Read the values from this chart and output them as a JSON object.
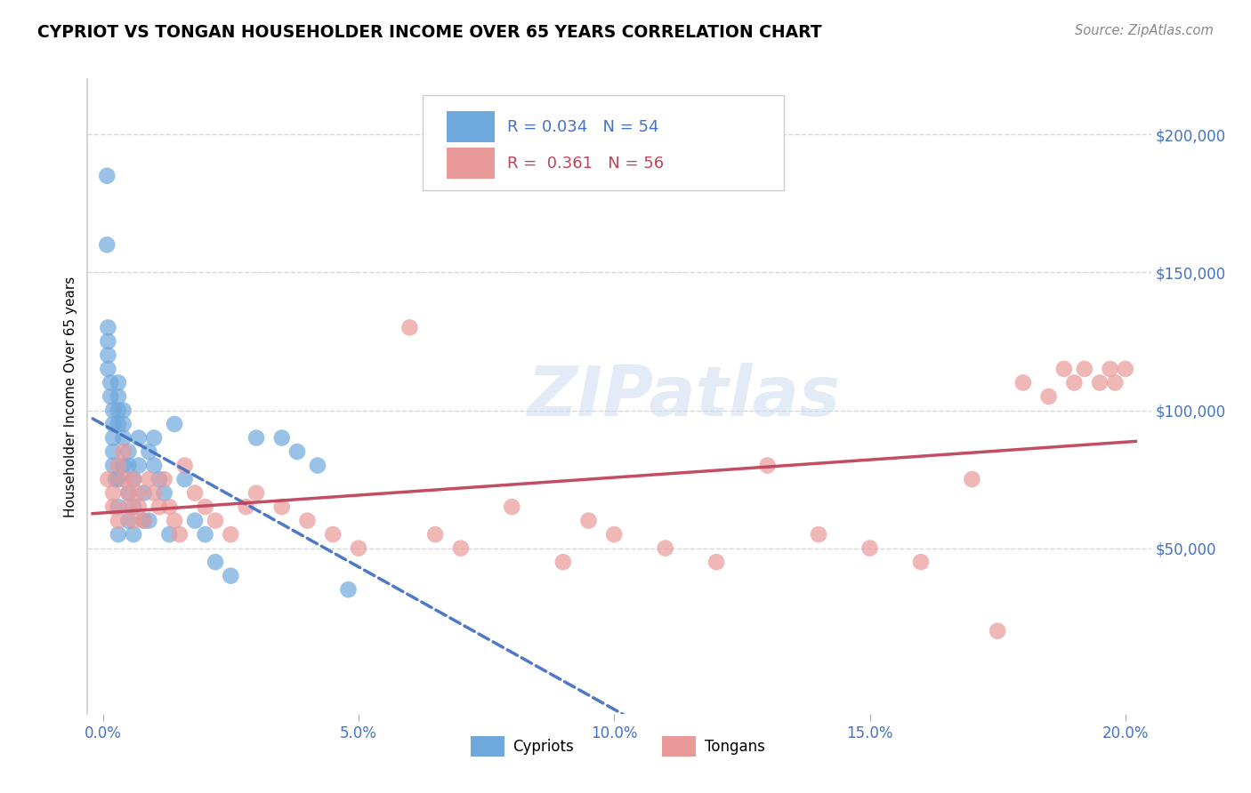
{
  "title": "CYPRIOT VS TONGAN HOUSEHOLDER INCOME OVER 65 YEARS CORRELATION CHART",
  "source": "Source: ZipAtlas.com",
  "ylabel": "Householder Income Over 65 years",
  "y_ticks": [
    0,
    50000,
    100000,
    150000,
    200000
  ],
  "y_tick_labels": [
    "",
    "$50,000",
    "$100,000",
    "$150,000",
    "$200,000"
  ],
  "x_ticks": [
    0.0,
    0.05,
    0.1,
    0.15,
    0.2
  ],
  "x_tick_labels": [
    "0.0%",
    "5.0%",
    "10.0%",
    "15.0%",
    "20.0%"
  ],
  "x_range": [
    0.0,
    0.2
  ],
  "y_range": [
    -10000,
    220000
  ],
  "legend1_R": "0.034",
  "legend1_N": "54",
  "legend2_R": "0.361",
  "legend2_N": "56",
  "cypriot_color": "#6fa8dc",
  "tongan_color": "#ea9999",
  "cypriot_trend_color": "#4472c4",
  "tongan_trend_color": "#c0435a",
  "grid_color": "#cccccc",
  "watermark": "ZIPatlas",
  "cypriot_x": [
    0.0008,
    0.0008,
    0.001,
    0.001,
    0.001,
    0.001,
    0.0015,
    0.0015,
    0.002,
    0.002,
    0.002,
    0.002,
    0.002,
    0.0025,
    0.003,
    0.003,
    0.003,
    0.003,
    0.003,
    0.003,
    0.003,
    0.004,
    0.004,
    0.004,
    0.004,
    0.005,
    0.005,
    0.005,
    0.005,
    0.006,
    0.006,
    0.006,
    0.007,
    0.007,
    0.008,
    0.008,
    0.009,
    0.009,
    0.01,
    0.01,
    0.011,
    0.012,
    0.013,
    0.014,
    0.016,
    0.018,
    0.02,
    0.022,
    0.025,
    0.03,
    0.035,
    0.038,
    0.042,
    0.048
  ],
  "cypriot_y": [
    185000,
    160000,
    130000,
    125000,
    120000,
    115000,
    110000,
    105000,
    100000,
    95000,
    90000,
    85000,
    80000,
    75000,
    110000,
    105000,
    100000,
    95000,
    75000,
    65000,
    55000,
    100000,
    95000,
    90000,
    80000,
    85000,
    80000,
    70000,
    60000,
    75000,
    65000,
    55000,
    90000,
    80000,
    70000,
    60000,
    85000,
    60000,
    90000,
    80000,
    75000,
    70000,
    55000,
    95000,
    75000,
    60000,
    55000,
    45000,
    40000,
    90000,
    90000,
    85000,
    80000,
    35000
  ],
  "tongan_x": [
    0.001,
    0.002,
    0.002,
    0.003,
    0.003,
    0.004,
    0.004,
    0.005,
    0.005,
    0.006,
    0.006,
    0.007,
    0.007,
    0.008,
    0.009,
    0.01,
    0.011,
    0.012,
    0.013,
    0.014,
    0.015,
    0.016,
    0.018,
    0.02,
    0.022,
    0.025,
    0.028,
    0.03,
    0.035,
    0.04,
    0.045,
    0.05,
    0.06,
    0.065,
    0.07,
    0.08,
    0.09,
    0.095,
    0.1,
    0.11,
    0.12,
    0.13,
    0.14,
    0.15,
    0.16,
    0.17,
    0.175,
    0.18,
    0.185,
    0.188,
    0.19,
    0.192,
    0.195,
    0.197,
    0.198,
    0.2
  ],
  "tongan_y": [
    75000,
    70000,
    65000,
    60000,
    80000,
    85000,
    75000,
    70000,
    65000,
    60000,
    75000,
    70000,
    65000,
    60000,
    75000,
    70000,
    65000,
    75000,
    65000,
    60000,
    55000,
    80000,
    70000,
    65000,
    60000,
    55000,
    65000,
    70000,
    65000,
    60000,
    55000,
    50000,
    130000,
    55000,
    50000,
    65000,
    45000,
    60000,
    55000,
    50000,
    45000,
    80000,
    55000,
    50000,
    45000,
    75000,
    20000,
    110000,
    105000,
    115000,
    110000,
    115000,
    110000,
    115000,
    110000,
    115000
  ]
}
